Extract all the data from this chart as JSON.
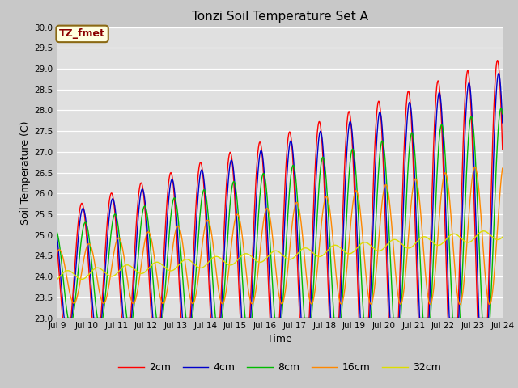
{
  "title": "Tonzi Soil Temperature Set A",
  "xlabel": "Time",
  "ylabel": "Soil Temperature (C)",
  "ylim": [
    23.0,
    30.0
  ],
  "yticks": [
    23.0,
    23.5,
    24.0,
    24.5,
    25.0,
    25.5,
    26.0,
    26.5,
    27.0,
    27.5,
    28.0,
    28.5,
    29.0,
    29.5,
    30.0
  ],
  "xtick_labels": [
    "Jul 9",
    "Jul 10",
    "Jul 11",
    "Jul 12",
    "Jul 13",
    "Jul 14",
    "Jul 15",
    "Jul 16",
    "Jul 17",
    "Jul 18",
    "Jul 19",
    "Jul 20",
    "Jul 21",
    "Jul 22",
    "Jul 23",
    "Jul 24"
  ],
  "line_colors": [
    "#ff0000",
    "#0000cc",
    "#00bb00",
    "#ff8800",
    "#dddd00"
  ],
  "line_labels": [
    "2cm",
    "4cm",
    "8cm",
    "16cm",
    "32cm"
  ],
  "legend_label": "TZ_fmet",
  "fig_facecolor": "#c8c8c8",
  "plot_bg_color": "#e0e0e0",
  "n_days": 15,
  "points_per_day": 144,
  "seed": 42
}
